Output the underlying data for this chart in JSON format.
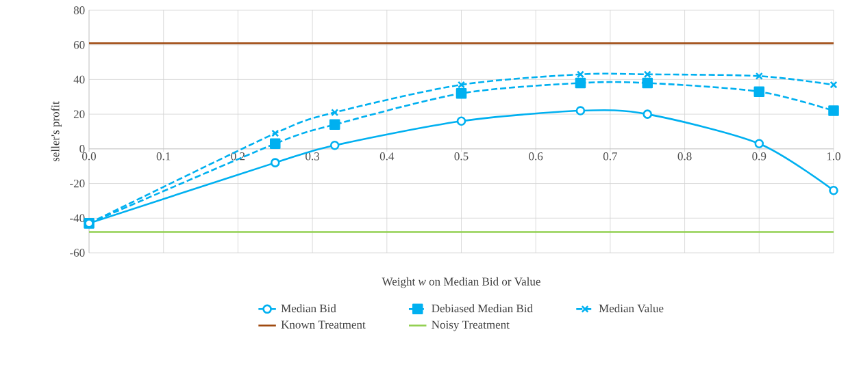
{
  "chart_data": {
    "type": "line",
    "xlabel": "Weight *w* on Median Bid or Value",
    "ylabel": "seller's profit",
    "xlim": [
      0,
      1
    ],
    "ylim": [
      -60,
      80
    ],
    "xticks": [
      {
        "value": 0,
        "label": "0.0"
      },
      0.1,
      0.2,
      0.3,
      0.4,
      0.5,
      0.6,
      0.7,
      0.8,
      0.9,
      {
        "value": 1,
        "label": "1.0"
      }
    ],
    "yticks": [
      -60,
      -40,
      -20,
      0,
      20,
      40,
      60,
      80
    ],
    "grid": true,
    "legend": "bottom",
    "series": [
      {
        "name": "Median Bid",
        "color": "#00b0f0",
        "marker": "circle",
        "line_style": "solid",
        "x": [
          0,
          0.25,
          0.33,
          0.5,
          0.66,
          0.75,
          0.9,
          1.0
        ],
        "values": [
          -43,
          -8,
          2,
          16,
          22,
          20,
          3,
          -24
        ]
      },
      {
        "name": "Debiased Median Bid",
        "color": "#00b0f0",
        "marker": "square",
        "line_style": "dashed",
        "x": [
          0,
          0.25,
          0.33,
          0.5,
          0.66,
          0.75,
          0.9,
          1.0
        ],
        "values": [
          -43,
          3,
          14,
          32,
          38,
          38,
          33,
          22
        ]
      },
      {
        "name": "Median Value",
        "color": "#00b0f0",
        "marker": "cross",
        "line_style": "dashed",
        "x": [
          0,
          0.25,
          0.33,
          0.5,
          0.66,
          0.75,
          0.9,
          1.0
        ],
        "values": [
          -43,
          9,
          21,
          37,
          43,
          43,
          42,
          37
        ]
      },
      {
        "name": "Known Treatment",
        "color": "#9e480e",
        "marker": "none",
        "line_style": "solid",
        "x": [
          0,
          1
        ],
        "values": [
          61,
          61
        ]
      },
      {
        "name": "Noisy Treatment",
        "color": "#92d050",
        "marker": "none",
        "line_style": "solid",
        "x": [
          0,
          1
        ],
        "values": [
          -48,
          -48
        ]
      }
    ]
  }
}
